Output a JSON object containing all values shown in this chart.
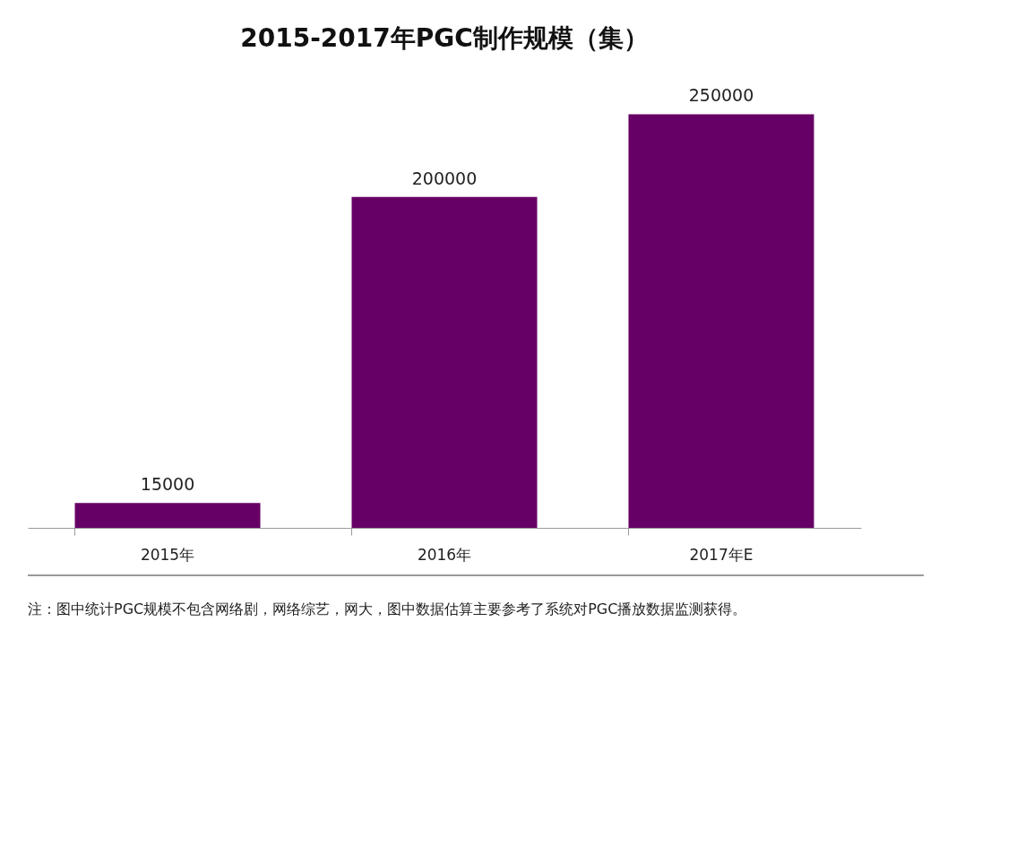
{
  "chart_data": {
    "type": "bar",
    "title": "2015-2017年PGC制作规模（集）",
    "categories": [
      "2015年",
      "2016年",
      "2017年E"
    ],
    "values": [
      15000,
      200000,
      250000
    ],
    "color": "#660066",
    "data_labels": true,
    "annotations": [
      "注：图中统计PGC规模不包含网络剧，网络综艺，网大，图中数据估算主要参考了系统对PGC播放数据监测获得。"
    ]
  }
}
